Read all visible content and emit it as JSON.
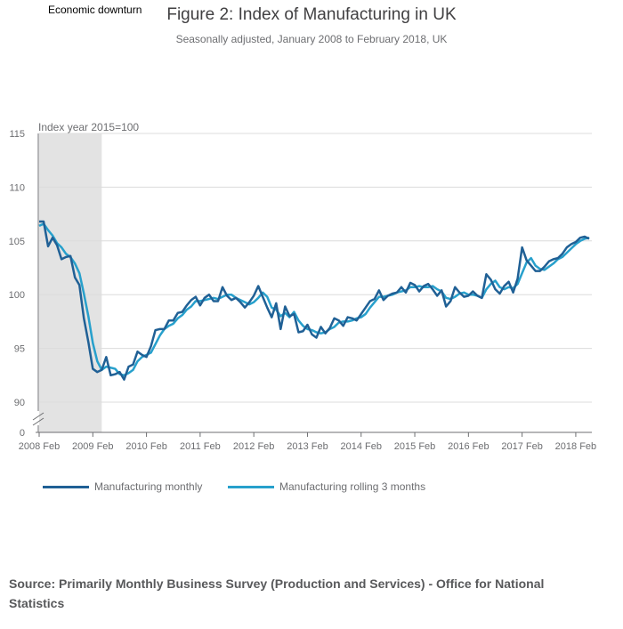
{
  "annotation": "Economic downturn",
  "chart_data": {
    "type": "line",
    "title": "Figure 2: Index of Manufacturing in UK",
    "subtitle": "Seasonally adjusted, January 2008 to February 2018, UK",
    "ylabel": "Index year 2015=100",
    "ylim": [
      90,
      115
    ],
    "yticks": [
      115,
      110,
      105,
      100,
      95,
      90
    ],
    "y_zero_label": "0",
    "xtick_labels": [
      "2008 Feb",
      "2009 Feb",
      "2010 Feb",
      "2011 Feb",
      "2012 Feb",
      "2013 Feb",
      "2014 Feb",
      "2015 Feb",
      "2016 Feb",
      "2017 Feb",
      "2018 Feb"
    ],
    "shaded_region": {
      "start_index": 0,
      "end_index": 14,
      "label": "Economic downturn"
    },
    "series": [
      {
        "name": "Manufacturing monthly",
        "color": "#206095",
        "values": [
          106.8,
          106.8,
          104.5,
          105.3,
          104.6,
          103.3,
          103.5,
          103.6,
          101.6,
          100.9,
          97.8,
          95.6,
          93.1,
          92.8,
          93.0,
          94.2,
          92.5,
          92.6,
          92.8,
          92.1,
          93.3,
          93.5,
          94.7,
          94.4,
          94.2,
          95.2,
          96.7,
          96.8,
          96.8,
          97.6,
          97.6,
          98.3,
          98.4,
          99.0,
          99.5,
          99.8,
          99.0,
          99.7,
          100.0,
          99.4,
          99.4,
          100.7,
          99.9,
          99.5,
          99.7,
          99.3,
          98.8,
          99.3,
          99.9,
          100.8,
          99.8,
          98.8,
          97.9,
          99.2,
          96.8,
          98.9,
          98.0,
          98.2,
          96.5,
          96.6,
          97.2,
          96.3,
          96.0,
          97.0,
          96.4,
          96.9,
          97.8,
          97.6,
          97.1,
          97.9,
          97.8,
          97.6,
          98.2,
          98.8,
          99.4,
          99.6,
          100.4,
          99.5,
          99.9,
          100.1,
          100.2,
          100.7,
          100.2,
          101.1,
          100.9,
          100.3,
          100.8,
          101.0,
          100.5,
          99.9,
          100.4,
          98.9,
          99.4,
          100.7,
          100.2,
          99.8,
          99.9,
          100.3,
          99.9,
          99.7,
          101.9,
          101.4,
          100.5,
          100.1,
          100.8,
          101.2,
          100.2,
          101.5,
          104.4,
          103.2,
          102.7,
          102.2,
          102.2,
          102.6,
          103.1,
          103.3,
          103.4,
          103.8,
          104.4,
          104.7,
          104.9,
          105.3,
          105.4,
          105.2
        ]
      },
      {
        "name": "Manufacturing rolling 3 months",
        "color": "#27a0cc",
        "values": [
          106.4,
          106.6,
          106.0,
          105.5,
          104.8,
          104.4,
          103.8,
          103.5,
          102.9,
          102.0,
          100.1,
          98.0,
          95.5,
          93.8,
          93.0,
          93.3,
          93.2,
          93.1,
          92.6,
          92.5,
          92.7,
          93.0,
          93.8,
          94.2,
          94.4,
          94.6,
          95.4,
          96.2,
          96.8,
          97.1,
          97.3,
          97.8,
          98.1,
          98.6,
          98.9,
          99.4,
          99.4,
          99.5,
          99.6,
          99.7,
          99.6,
          99.8,
          100.0,
          100.0,
          99.7,
          99.5,
          99.3,
          99.1,
          99.3,
          99.7,
          100.2,
          99.8,
          98.8,
          98.6,
          98.0,
          98.3,
          97.9,
          98.4,
          97.6,
          97.1,
          96.8,
          96.7,
          96.5,
          96.4,
          96.5,
          96.8,
          97.0,
          97.4,
          97.5,
          97.5,
          97.6,
          97.8,
          97.9,
          98.2,
          98.8,
          99.3,
          99.8,
          99.8,
          99.9,
          100.0,
          100.2,
          100.3,
          100.4,
          100.7,
          100.7,
          100.8,
          100.7,
          100.7,
          100.8,
          100.5,
          100.3,
          99.7,
          99.6,
          99.8,
          100.1,
          100.2,
          100.0,
          100.0,
          99.9,
          99.7,
          100.5,
          101.0,
          101.3,
          100.7,
          100.5,
          100.7,
          100.6,
          101.0,
          102.0,
          103.0,
          103.4,
          102.7,
          102.4,
          102.3,
          102.6,
          102.9,
          103.3,
          103.5,
          103.9,
          104.3,
          104.7,
          105.0,
          105.2,
          105.3
        ]
      }
    ]
  },
  "source": "Source: Primarily Monthly Business Survey (Production and Services) - Office for National Statistics"
}
